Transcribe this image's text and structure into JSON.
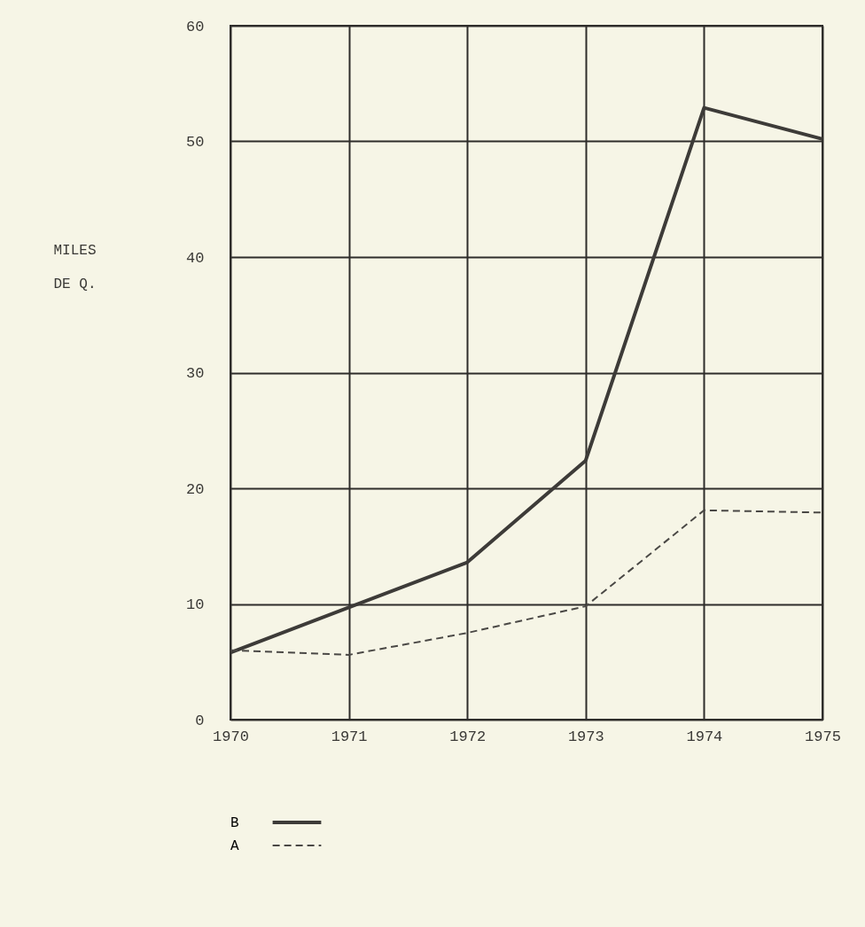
{
  "chart_data": {
    "type": "line",
    "ylabel": "MILES DE Q.",
    "x": [
      1970,
      1971,
      1972,
      1973,
      1974,
      1975
    ],
    "xlim": [
      1970,
      1975
    ],
    "xticks": [
      1970,
      1971,
      1972,
      1973,
      1974,
      1975
    ],
    "ylim": [
      0,
      60
    ],
    "yticks": [
      0,
      10,
      20,
      30,
      40,
      50,
      60
    ],
    "series": [
      {
        "name": "B",
        "color": "#3d3b38",
        "line_style": "solid",
        "values": [
          5.8,
          9.7,
          13.6,
          22.4,
          52.9,
          50.2
        ]
      },
      {
        "name": "A",
        "color": "#4a4845",
        "line_style": "dashed",
        "values": [
          6.0,
          5.6,
          7.5,
          9.8,
          18.1,
          17.9
        ]
      }
    ],
    "grid": true,
    "legend": "bottom"
  }
}
